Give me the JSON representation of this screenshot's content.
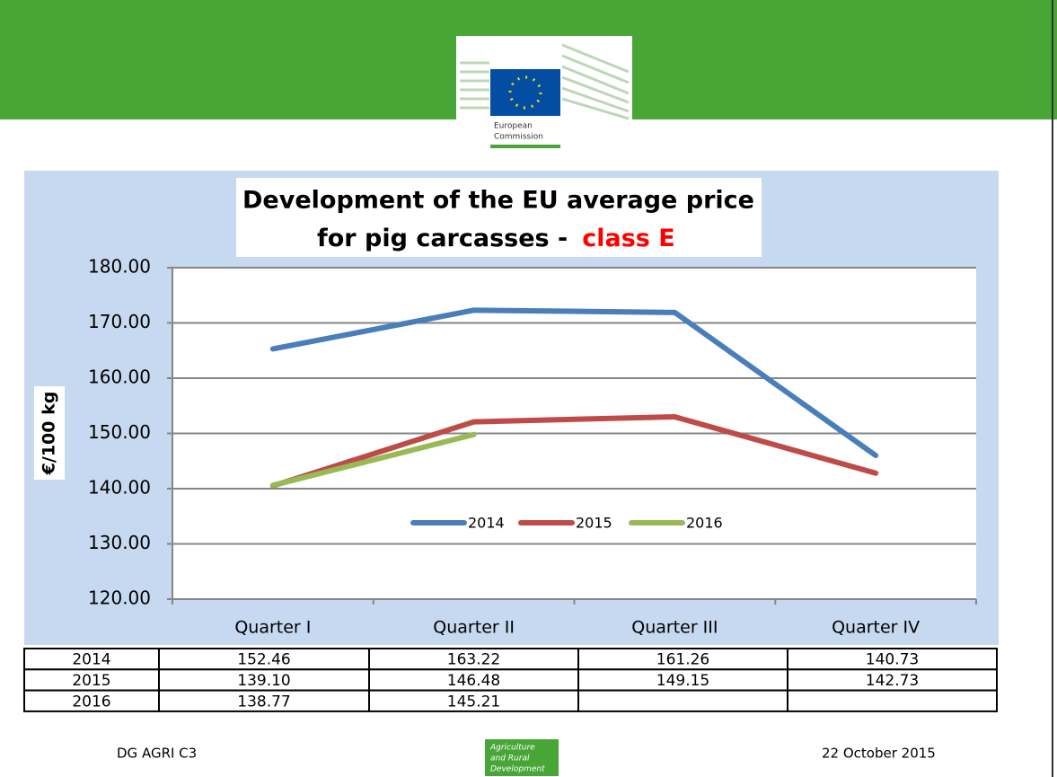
{
  "header": {
    "logo_text": [
      "European",
      "Commission"
    ]
  },
  "chart_data": {
    "type": "line",
    "title": "Development of the EU average price",
    "title_line2": "for pig carcasses -",
    "title_highlight": "class E",
    "ylabel": "€/100 kg",
    "categories": [
      "Quarter I",
      "Quarter II",
      "Quarter III",
      "Quarter IV"
    ],
    "series": [
      {
        "name": "2014",
        "color": "#4a7ebb",
        "values": [
          165.3,
          172.3,
          171.9,
          146.0
        ]
      },
      {
        "name": "2015",
        "color": "#be4b48",
        "values": [
          140.5,
          152.1,
          153.0,
          142.8
        ]
      },
      {
        "name": "2016",
        "color": "#98b954",
        "values": [
          140.6,
          149.8,
          null,
          null
        ]
      }
    ],
    "ylim": [
      120,
      180
    ],
    "yticks": [
      {
        "value": 120,
        "label": "120.00"
      },
      {
        "value": 130,
        "label": "130.00"
      },
      {
        "value": 140,
        "label": "140.00"
      },
      {
        "value": 150,
        "label": "150.00"
      },
      {
        "value": 160,
        "label": "160.00"
      },
      {
        "value": 170,
        "label": "170.00"
      },
      {
        "value": 180,
        "label": "180.00"
      }
    ],
    "grid": true,
    "legend": "inside-bottom"
  },
  "table": {
    "rows": [
      [
        "2014",
        "152.46",
        "163.22",
        "161.26",
        "140.73"
      ],
      [
        "2015",
        "139.10",
        "146.48",
        "149.15",
        "142.73"
      ],
      [
        "2016",
        "138.77",
        "145.21"
      ]
    ]
  },
  "footer": {
    "left": "DG AGRI C3",
    "badge": [
      "Agriculture",
      "and Rural",
      "Development"
    ],
    "right": "22 October 2015"
  }
}
